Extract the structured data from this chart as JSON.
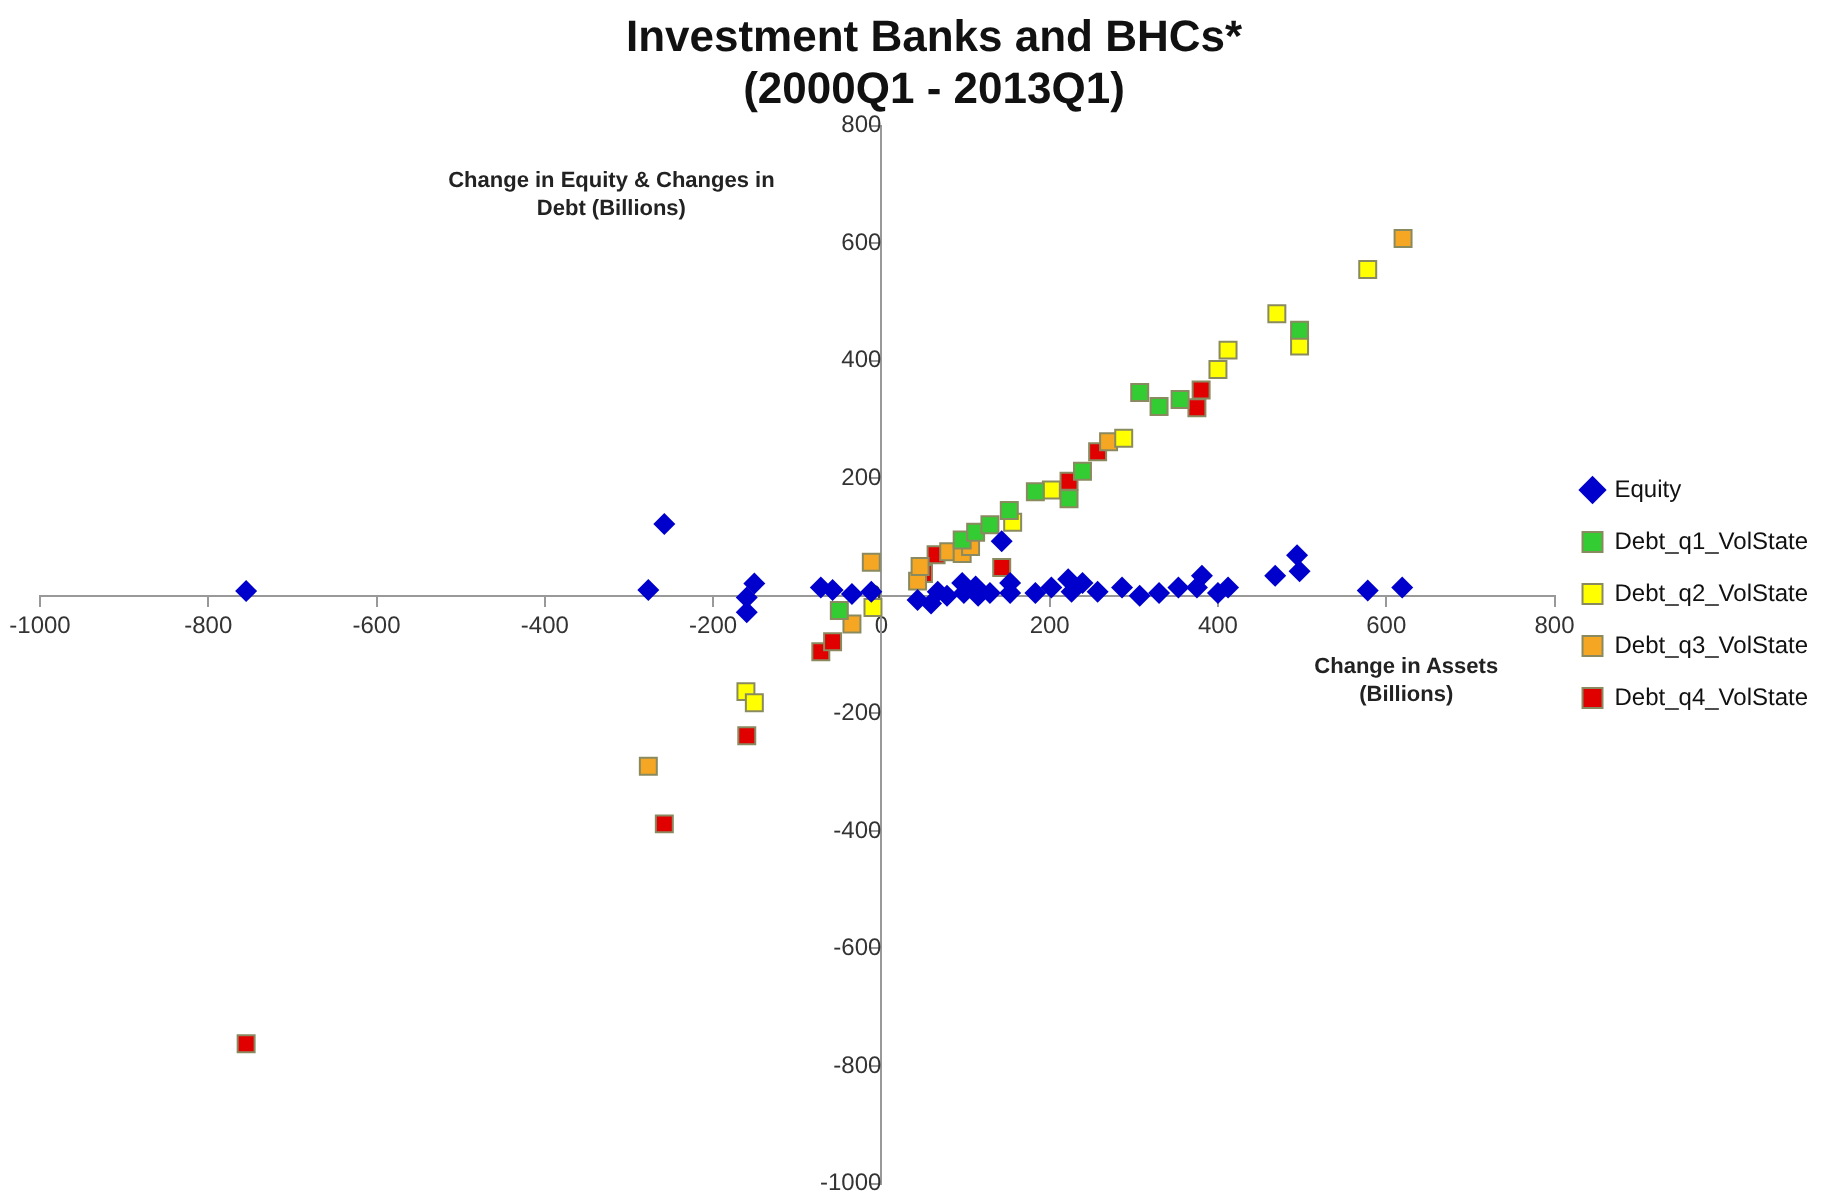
{
  "chart_data": {
    "type": "scatter",
    "title": "Investment Banks and BHCs*",
    "subtitle": "(2000Q1 - 2013Q1)",
    "xlabel": "Change in Assets (Billions)",
    "ylabel": "Change in Equity & Changes in Debt (Billions)",
    "xlim": [
      -1000,
      800
    ],
    "xticks": [
      -1000,
      -800,
      -600,
      -400,
      -200,
      0,
      200,
      400,
      600,
      800
    ],
    "ylim": [
      -1000,
      800
    ],
    "yticks": [
      -1000,
      -800,
      -600,
      -400,
      -200,
      0,
      200,
      400,
      600,
      800
    ],
    "grid": false,
    "legend": "right",
    "series": [
      {
        "name": "Equity",
        "color": "#0000cc",
        "marker": "diamond",
        "x": [
          -755,
          -277,
          -258,
          -160,
          -160,
          -151,
          -72,
          -58,
          -35,
          -12,
          43,
          59,
          67,
          78,
          96,
          98,
          112,
          115,
          129,
          143,
          153,
          153,
          183,
          202,
          222,
          226,
          239,
          257,
          286,
          307,
          330,
          353,
          375,
          381,
          400,
          412,
          468,
          494,
          497,
          578,
          619
        ],
        "values": [
          8,
          10,
          122,
          -3,
          -28,
          21,
          14,
          10,
          3,
          7,
          -7,
          -13,
          7,
          0,
          22,
          5,
          16,
          0,
          5,
          93,
          22,
          5,
          5,
          14,
          28,
          7,
          22,
          7,
          14,
          0,
          5,
          14,
          14,
          34,
          5,
          14,
          34,
          69,
          42,
          9,
          14
        ]
      },
      {
        "name": "Debt_q1_VolState",
        "color": "#33cc33",
        "marker": "square",
        "x": [
          -50,
          96,
          112,
          129,
          152,
          183,
          223,
          239,
          307,
          330,
          355,
          497
        ],
        "values": [
          -25,
          95,
          108,
          121,
          145,
          177,
          165,
          212,
          346,
          322,
          334,
          452
        ]
      },
      {
        "name": "Debt_q2_VolState",
        "color": "#ffff00",
        "marker": "square",
        "x": [
          -161,
          -151,
          -10,
          156,
          202,
          288,
          400,
          412,
          470,
          497,
          578
        ],
        "values": [
          -163,
          -182,
          -20,
          125,
          180,
          268,
          385,
          418,
          480,
          425,
          555
        ]
      },
      {
        "name": "Debt_q3_VolState",
        "color": "#f5a623",
        "marker": "square",
        "x": [
          -277,
          -35,
          -12,
          43,
          46,
          80,
          96,
          106,
          270,
          620
        ],
        "values": [
          -290,
          -48,
          57,
          25,
          50,
          75,
          72,
          84,
          262,
          608
        ]
      },
      {
        "name": "Debt_q4_VolState",
        "color": "#e00000",
        "marker": "square",
        "x": [
          -755,
          -258,
          -160,
          -72,
          -58,
          50,
          65,
          143,
          223,
          257,
          375,
          380
        ],
        "values": [
          -762,
          -388,
          -238,
          -95,
          -78,
          38,
          70,
          48,
          195,
          245,
          320,
          350
        ]
      }
    ]
  }
}
